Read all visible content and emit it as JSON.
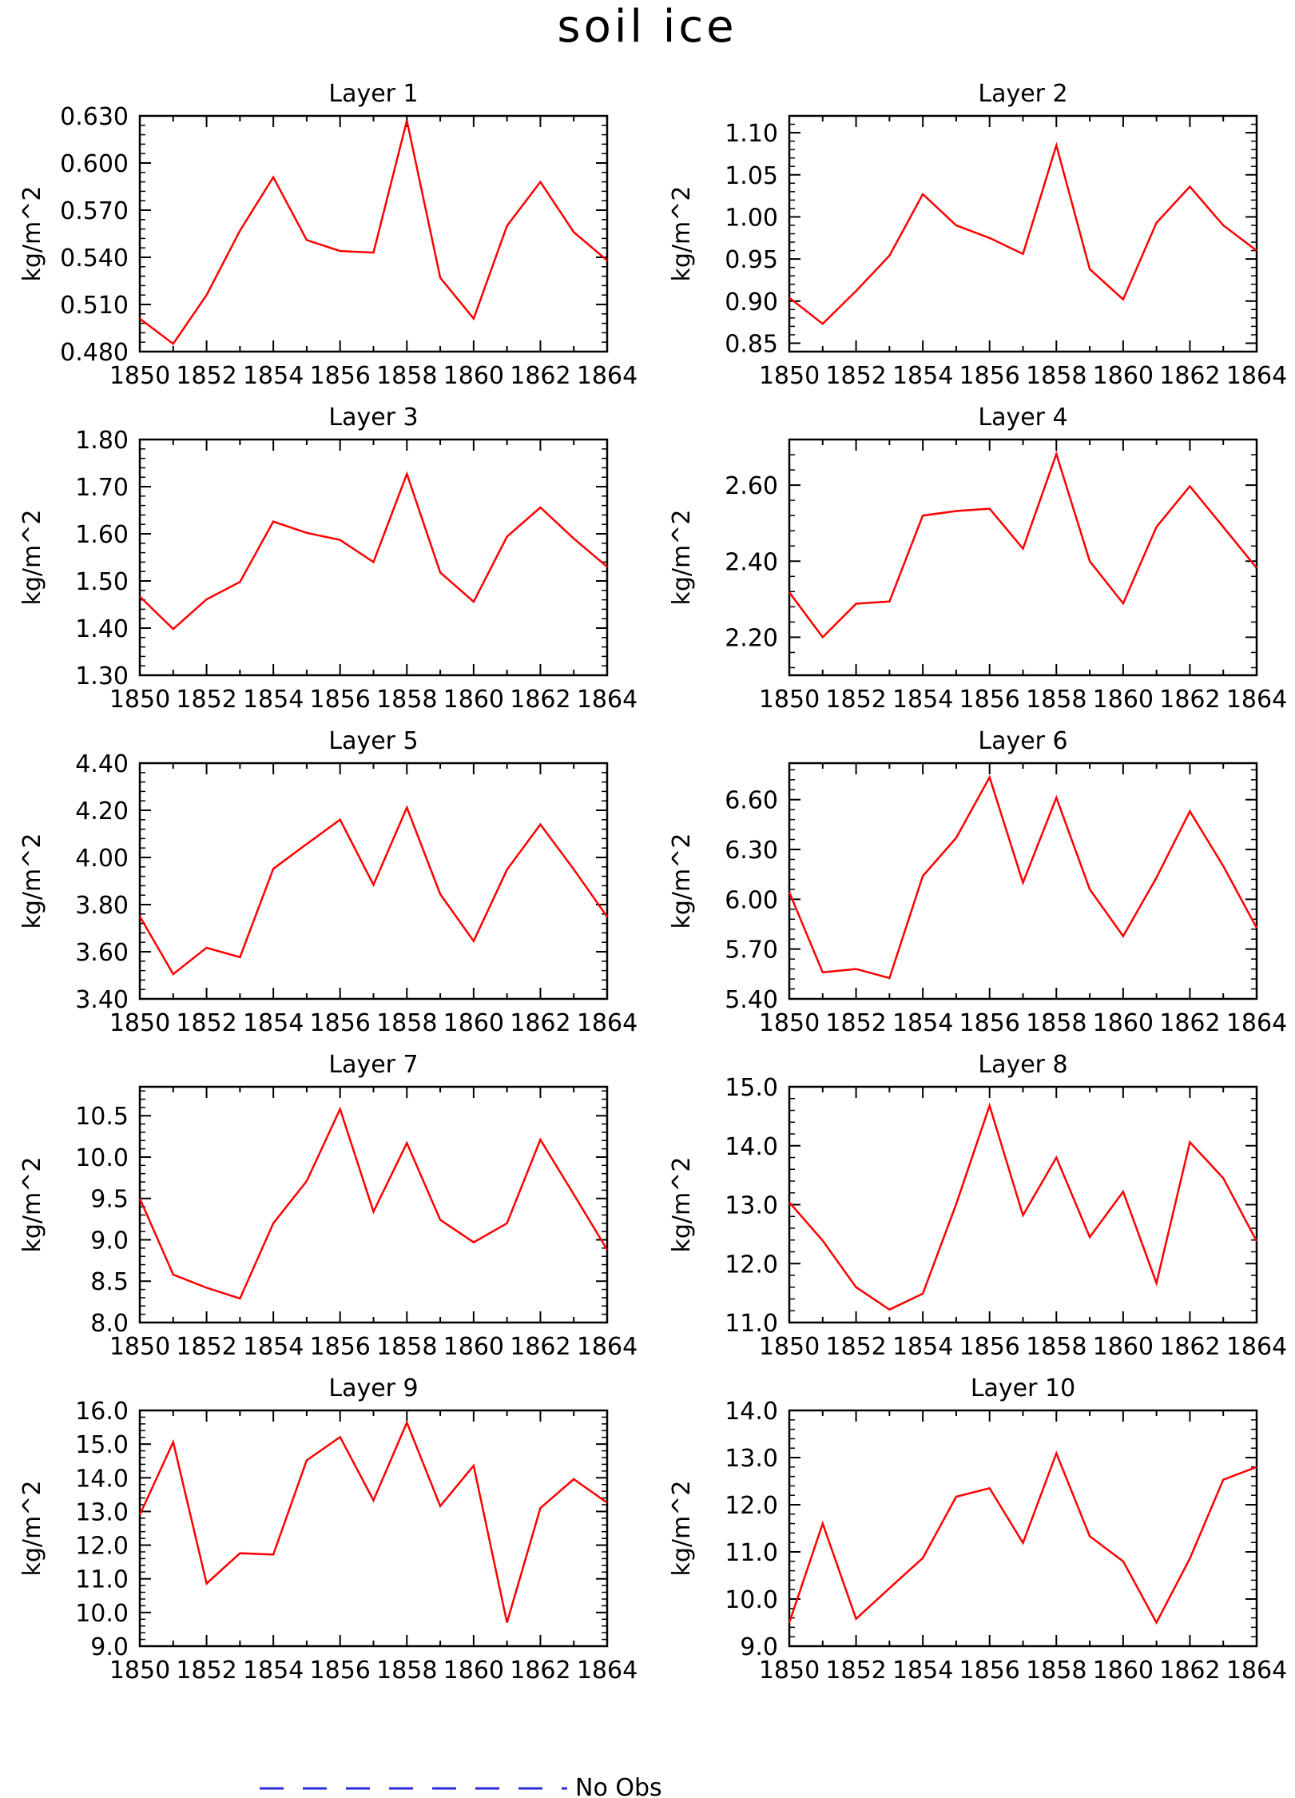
{
  "title": "soil ice",
  "legend": {
    "label": "No Obs",
    "color": "#2a2ad8",
    "style": "dashed",
    "placement": "bottom-center"
  },
  "series_color": "#ff0000",
  "chart_data": [
    {
      "type": "line",
      "title": "Layer 1",
      "xlabel": "",
      "ylabel": "kg/m^2",
      "x": [
        1850,
        1851,
        1852,
        1853,
        1854,
        1855,
        1856,
        1857,
        1858,
        1859,
        1860,
        1861,
        1862,
        1863,
        1864
      ],
      "xticks": [
        "1850",
        "1852",
        "1854",
        "1856",
        "1858",
        "1860",
        "1862",
        "1864"
      ],
      "xlim": [
        1850,
        1864
      ],
      "ylim": [
        0.48,
        0.63
      ],
      "yticks": [
        "0.480",
        "0.510",
        "0.540",
        "0.570",
        "0.600",
        "0.630"
      ],
      "values": [
        0.501,
        0.485,
        0.516,
        0.557,
        0.591,
        0.551,
        0.544,
        0.543,
        0.627,
        0.527,
        0.501,
        0.56,
        0.588,
        0.556,
        0.538
      ]
    },
    {
      "type": "line",
      "title": "Layer 2",
      "xlabel": "",
      "ylabel": "kg/m^2",
      "x": [
        1850,
        1851,
        1852,
        1853,
        1854,
        1855,
        1856,
        1857,
        1858,
        1859,
        1860,
        1861,
        1862,
        1863,
        1864
      ],
      "xticks": [
        "1850",
        "1852",
        "1854",
        "1856",
        "1858",
        "1860",
        "1862",
        "1864"
      ],
      "xlim": [
        1850,
        1864
      ],
      "ylim": [
        0.84,
        1.12
      ],
      "yticks": [
        "0.85",
        "0.90",
        "0.95",
        "1.00",
        "1.05",
        "1.10"
      ],
      "values": [
        0.904,
        0.873,
        0.912,
        0.954,
        1.027,
        0.99,
        0.975,
        0.956,
        1.085,
        0.938,
        0.902,
        0.993,
        1.036,
        0.99,
        0.96
      ]
    },
    {
      "type": "line",
      "title": "Layer 3",
      "xlabel": "",
      "ylabel": "kg/m^2",
      "x": [
        1850,
        1851,
        1852,
        1853,
        1854,
        1855,
        1856,
        1857,
        1858,
        1859,
        1860,
        1861,
        1862,
        1863,
        1864
      ],
      "xticks": [
        "1850",
        "1852",
        "1854",
        "1856",
        "1858",
        "1860",
        "1862",
        "1864"
      ],
      "xlim": [
        1850,
        1864
      ],
      "ylim": [
        1.3,
        1.8
      ],
      "yticks": [
        "1.30",
        "1.40",
        "1.50",
        "1.60",
        "1.70",
        "1.80"
      ],
      "values": [
        1.467,
        1.398,
        1.461,
        1.498,
        1.626,
        1.602,
        1.587,
        1.54,
        1.727,
        1.518,
        1.456,
        1.594,
        1.656,
        1.59,
        1.53
      ]
    },
    {
      "type": "line",
      "title": "Layer 4",
      "xlabel": "",
      "ylabel": "kg/m^2",
      "x": [
        1850,
        1851,
        1852,
        1853,
        1854,
        1855,
        1856,
        1857,
        1858,
        1859,
        1860,
        1861,
        1862,
        1863,
        1864
      ],
      "xticks": [
        "1850",
        "1852",
        "1854",
        "1856",
        "1858",
        "1860",
        "1862",
        "1864"
      ],
      "xlim": [
        1850,
        1864
      ],
      "ylim": [
        2.1,
        2.72
      ],
      "yticks": [
        "2.20",
        "2.40",
        "2.60"
      ],
      "values": [
        2.318,
        2.2,
        2.288,
        2.294,
        2.52,
        2.532,
        2.538,
        2.433,
        2.682,
        2.4,
        2.289,
        2.49,
        2.597,
        2.49,
        2.382
      ]
    },
    {
      "type": "line",
      "title": "Layer 5",
      "xlabel": "",
      "ylabel": "kg/m^2",
      "x": [
        1850,
        1851,
        1852,
        1853,
        1854,
        1855,
        1856,
        1857,
        1858,
        1859,
        1860,
        1861,
        1862,
        1863,
        1864
      ],
      "xticks": [
        "1850",
        "1852",
        "1854",
        "1856",
        "1858",
        "1860",
        "1862",
        "1864"
      ],
      "xlim": [
        1850,
        1864
      ],
      "ylim": [
        3.4,
        4.4
      ],
      "yticks": [
        "3.40",
        "3.60",
        "3.80",
        "4.00",
        "4.20",
        "4.40"
      ],
      "values": [
        3.75,
        3.505,
        3.617,
        3.577,
        3.952,
        4.057,
        4.16,
        3.884,
        4.212,
        3.844,
        3.645,
        3.948,
        4.14,
        3.95,
        3.748
      ]
    },
    {
      "type": "line",
      "title": "Layer 6",
      "xlabel": "",
      "ylabel": "kg/m^2",
      "x": [
        1850,
        1851,
        1852,
        1853,
        1854,
        1855,
        1856,
        1857,
        1858,
        1859,
        1860,
        1861,
        1862,
        1863,
        1864
      ],
      "xticks": [
        "1850",
        "1852",
        "1854",
        "1856",
        "1858",
        "1860",
        "1862",
        "1864"
      ],
      "xlim": [
        1850,
        1864
      ],
      "ylim": [
        5.4,
        6.82
      ],
      "yticks": [
        "5.40",
        "5.70",
        "6.00",
        "6.30",
        "6.60"
      ],
      "values": [
        6.042,
        5.56,
        5.58,
        5.525,
        6.14,
        6.37,
        6.735,
        6.1,
        6.612,
        6.06,
        5.778,
        6.13,
        6.53,
        6.2,
        5.828
      ]
    },
    {
      "type": "line",
      "title": "Layer 7",
      "xlabel": "",
      "ylabel": "kg/m^2",
      "x": [
        1850,
        1851,
        1852,
        1853,
        1854,
        1855,
        1856,
        1857,
        1858,
        1859,
        1860,
        1861,
        1862,
        1863,
        1864
      ],
      "xticks": [
        "1850",
        "1852",
        "1854",
        "1856",
        "1858",
        "1860",
        "1862",
        "1864"
      ],
      "xlim": [
        1850,
        1864
      ],
      "ylim": [
        8.0,
        10.85
      ],
      "yticks": [
        "8.0",
        "8.5",
        "9.0",
        "9.5",
        "10.0",
        "10.5"
      ],
      "values": [
        9.5,
        8.58,
        8.42,
        8.29,
        9.2,
        9.71,
        10.58,
        9.34,
        10.17,
        9.24,
        8.97,
        9.2,
        10.21,
        9.55,
        8.88
      ]
    },
    {
      "type": "line",
      "title": "Layer 8",
      "xlabel": "",
      "ylabel": "kg/m^2",
      "x": [
        1850,
        1851,
        1852,
        1853,
        1854,
        1855,
        1856,
        1857,
        1858,
        1859,
        1860,
        1861,
        1862,
        1863,
        1864
      ],
      "xticks": [
        "1850",
        "1852",
        "1854",
        "1856",
        "1858",
        "1860",
        "1862",
        "1864"
      ],
      "xlim": [
        1850,
        1864
      ],
      "ylim": [
        11.0,
        15.0
      ],
      "yticks": [
        "11.0",
        "12.0",
        "13.0",
        "14.0",
        "15.0"
      ],
      "values": [
        13.04,
        12.39,
        11.6,
        11.22,
        11.49,
        13.01,
        14.68,
        12.82,
        13.8,
        12.45,
        13.22,
        11.67,
        14.06,
        13.45,
        12.38
      ]
    },
    {
      "type": "line",
      "title": "Layer 9",
      "xlabel": "",
      "ylabel": "kg/m^2",
      "x": [
        1850,
        1851,
        1852,
        1853,
        1854,
        1855,
        1856,
        1857,
        1858,
        1859,
        1860,
        1861,
        1862,
        1863,
        1864
      ],
      "xticks": [
        "1850",
        "1852",
        "1854",
        "1856",
        "1858",
        "1860",
        "1862",
        "1864"
      ],
      "xlim": [
        1850,
        1864
      ],
      "ylim": [
        9.0,
        16.0
      ],
      "yticks": [
        "9.0",
        "10.0",
        "11.0",
        "12.0",
        "13.0",
        "14.0",
        "15.0",
        "16.0"
      ],
      "values": [
        12.9,
        15.06,
        10.86,
        11.76,
        11.72,
        14.52,
        15.21,
        13.33,
        15.64,
        13.16,
        14.36,
        9.7,
        13.1,
        13.96,
        13.26
      ]
    },
    {
      "type": "line",
      "title": "Layer 10",
      "xlabel": "",
      "ylabel": "kg/m^2",
      "x": [
        1850,
        1851,
        1852,
        1853,
        1854,
        1855,
        1856,
        1857,
        1858,
        1859,
        1860,
        1861,
        1862,
        1863,
        1864
      ],
      "xticks": [
        "1850",
        "1852",
        "1854",
        "1856",
        "1858",
        "1860",
        "1862",
        "1864"
      ],
      "xlim": [
        1850,
        1864
      ],
      "ylim": [
        9.0,
        14.0
      ],
      "yticks": [
        "9.0",
        "10.0",
        "11.0",
        "12.0",
        "13.0",
        "14.0"
      ],
      "values": [
        9.5,
        11.6,
        9.58,
        10.23,
        10.87,
        12.17,
        12.35,
        11.19,
        13.09,
        11.33,
        10.8,
        9.5,
        10.86,
        12.53,
        12.8
      ]
    }
  ]
}
